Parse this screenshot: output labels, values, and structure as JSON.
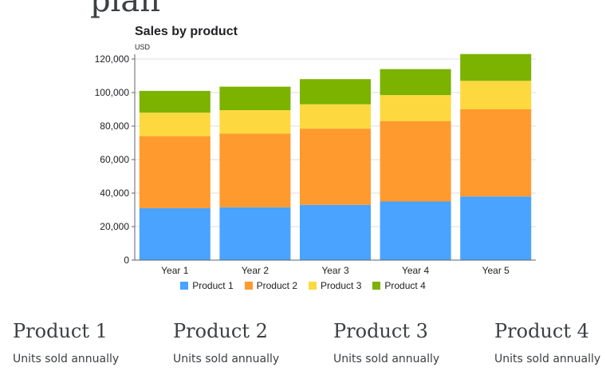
{
  "page": {
    "heading_fragment": "plan"
  },
  "chart_data": {
    "type": "bar",
    "stacked": true,
    "title": "Sales by product",
    "ylabel": "USD",
    "xlabel": "",
    "categories": [
      "Year 1",
      "Year 2",
      "Year 3",
      "Year 4",
      "Year 5"
    ],
    "ylim": [
      0,
      120000
    ],
    "yticks": [
      0,
      20000,
      40000,
      60000,
      80000,
      100000,
      120000
    ],
    "ytick_labels": [
      "0",
      "20,000",
      "40,000",
      "60,000",
      "80,000",
      "100,000",
      "120,000"
    ],
    "grid": true,
    "legend_position": "bottom",
    "series": [
      {
        "name": "Product 1",
        "color": "#4aa3ff",
        "values": [
          31000,
          31500,
          33000,
          35000,
          38000
        ]
      },
      {
        "name": "Product 2",
        "color": "#ff9a2e",
        "values": [
          43000,
          44000,
          45500,
          48000,
          52000
        ]
      },
      {
        "name": "Product 3",
        "color": "#fdd93f",
        "values": [
          14000,
          14000,
          14500,
          15500,
          17000
        ]
      },
      {
        "name": "Product 4",
        "color": "#7cb200",
        "values": [
          13000,
          14000,
          15000,
          15500,
          16000
        ]
      }
    ]
  },
  "products": [
    {
      "name": "Product 1",
      "subtitle": "Units sold annually"
    },
    {
      "name": "Product 2",
      "subtitle": "Units sold annually"
    },
    {
      "name": "Product 3",
      "subtitle": "Units sold annually"
    },
    {
      "name": "Product 4",
      "subtitle": "Units sold annually"
    }
  ]
}
